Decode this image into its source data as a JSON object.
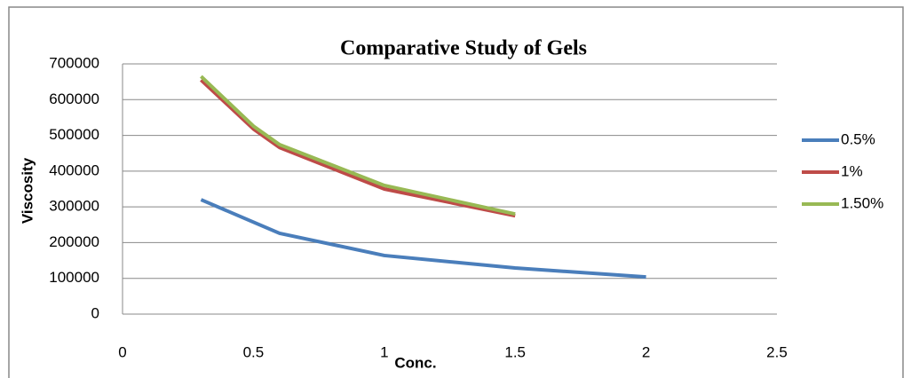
{
  "chart_data": {
    "type": "line",
    "title": "Comparative Study of Gels",
    "xlabel": "Conc.",
    "ylabel": "Viscosity",
    "series": [
      {
        "name": "0.5%",
        "color": "#4a7ebb",
        "x": [
          0.3,
          0.6,
          1,
          1.5,
          2
        ],
        "values": [
          320000,
          226000,
          164000,
          129000,
          104000
        ]
      },
      {
        "name": "1%",
        "color": "#be4b48",
        "x": [
          0.3,
          0.5,
          0.6,
          1,
          1.5
        ],
        "values": [
          655000,
          518000,
          466000,
          350000,
          275000
        ]
      },
      {
        "name": "1.50%",
        "color": "#98b954",
        "x": [
          0.3,
          0.5,
          0.6,
          1,
          1.5
        ],
        "values": [
          665000,
          526000,
          474000,
          360000,
          280000
        ]
      }
    ],
    "xlim": [
      0,
      2.5
    ],
    "xticks": [
      0,
      0.5,
      1,
      1.5,
      2,
      2.5
    ],
    "ylim": [
      0,
      700000
    ],
    "yticks": [
      0,
      100000,
      200000,
      300000,
      400000,
      500000,
      600000,
      700000
    ],
    "grid": true,
    "legend": "right"
  }
}
